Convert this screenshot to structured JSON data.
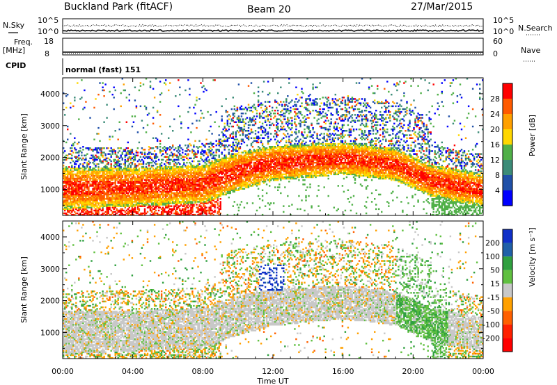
{
  "header": {
    "station": "Buckland Park (fitACF)",
    "beam": "Beam 20",
    "date": "27/Mar/2015"
  },
  "summary": {
    "nsky_label": "N.Sky",
    "nsky_ticks": [
      "10^5",
      "10^0"
    ],
    "nsearch_label": "N.Search",
    "nsearch_ticks": [
      "10^5",
      "10^0"
    ],
    "freq_label": "Freq.",
    "freq_unit": "[MHz]",
    "freq_ticks": [
      "18",
      "8"
    ],
    "nave_label": "Nave",
    "nave_ticks": [
      "60",
      "0"
    ],
    "cpid_label": "CPID",
    "cpid_value": "normal (fast) 151"
  },
  "chart_data": [
    {
      "type": "heatmap",
      "name": "power",
      "ylabel": "Slant Range [km]",
      "ylim": [
        180,
        4500
      ],
      "yticks": [
        "1000",
        "2000",
        "3000",
        "4000"
      ],
      "xlim": [
        0,
        24
      ],
      "colorbar": {
        "label": "Power [dB]",
        "ticks": [
          "4",
          "8",
          "12",
          "16",
          "20",
          "24",
          "28"
        ],
        "colors": [
          "#0000ff",
          "#2050a8",
          "#3c8c78",
          "#50b048",
          "#ffd700",
          "#ffa000",
          "#ff5a00",
          "#ff0000"
        ]
      },
      "bands": [
        {
          "t": 0,
          "lo": 600,
          "hi": 1400
        },
        {
          "t": 4,
          "lo": 700,
          "hi": 1400
        },
        {
          "t": 8,
          "lo": 800,
          "hi": 1500
        },
        {
          "t": 10,
          "lo": 1200,
          "hi": 1900
        },
        {
          "t": 12,
          "lo": 1500,
          "hi": 2100
        },
        {
          "t": 16,
          "lo": 1700,
          "hi": 2200
        },
        {
          "t": 19,
          "lo": 1500,
          "hi": 2000
        },
        {
          "t": 21,
          "lo": 1000,
          "hi": 1500
        },
        {
          "t": 24,
          "lo": 700,
          "hi": 1200
        }
      ]
    },
    {
      "type": "heatmap",
      "name": "velocity",
      "ylabel": "Slant Range [km]",
      "xlabel": "Time UT",
      "ylim": [
        180,
        4500
      ],
      "yticks": [
        "1000",
        "2000",
        "3000",
        "4000"
      ],
      "xlim": [
        0,
        24
      ],
      "xticks": [
        "00:00",
        "04:00",
        "08:00",
        "12:00",
        "16:00",
        "20:00",
        "00:00"
      ],
      "colorbar": {
        "label": "Velocity [m s⁻¹]",
        "ticks": [
          "200",
          "100",
          "50",
          "15",
          "-15",
          "-50",
          "-100",
          "-200"
        ],
        "colors": [
          "#1030c8",
          "#2060a8",
          "#30a040",
          "#60c040",
          "#c8c8c8",
          "#ffa000",
          "#ff6000",
          "#ff2000",
          "#ff0000"
        ]
      }
    }
  ]
}
